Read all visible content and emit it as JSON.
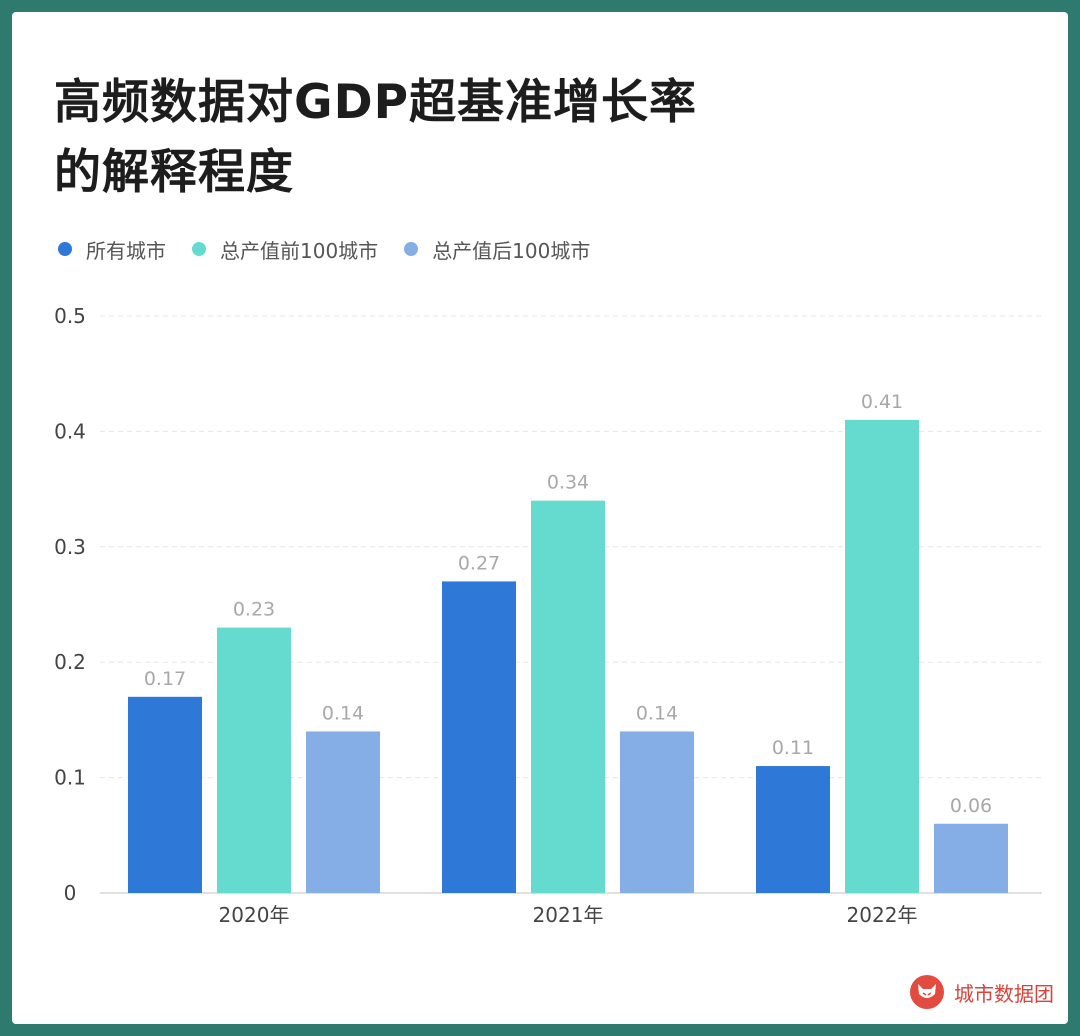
{
  "title_lines": [
    "高频数据对GDP超基准增长率",
    "的解释程度"
  ],
  "brand": {
    "name": "城市数据团",
    "logo_icon": "fox-logo-icon"
  },
  "colors": {
    "all_cities": "#2e78d8",
    "top100": "#65dbd0",
    "bottom100": "#85ade6",
    "grid": "#e6e6e6",
    "axis_text": "#444444",
    "label_text": "#a8a8a8"
  },
  "chart_data": {
    "type": "bar",
    "title": "高频数据对GDP超基准增长率的解释程度",
    "categories": [
      "2020年",
      "2021年",
      "2022年"
    ],
    "series": [
      {
        "name": "所有城市",
        "values": [
          0.17,
          0.27,
          0.11
        ],
        "labels": [
          "0.17",
          "0.27",
          "0.11"
        ],
        "color": "#2e78d8"
      },
      {
        "name": "总产值前100城市",
        "values": [
          0.23,
          0.34,
          0.41
        ],
        "labels": [
          "0.23",
          "0.34",
          "0.41"
        ],
        "color": "#65dbd0"
      },
      {
        "name": "总产值后100城市",
        "values": [
          0.14,
          0.14,
          0.06
        ],
        "labels": [
          "0.14",
          "0.14",
          "0.06"
        ],
        "color": "#85ade6"
      }
    ],
    "yticks": [
      0,
      0.1,
      0.2,
      0.3,
      0.4,
      0.5
    ],
    "ytick_labels": [
      "0",
      "0.1",
      "0.2",
      "0.3",
      "0.4",
      "0.5"
    ],
    "ylim": [
      0,
      0.5
    ],
    "xlabel": "",
    "ylabel": "",
    "grid": true,
    "legend_position": "top-left"
  }
}
